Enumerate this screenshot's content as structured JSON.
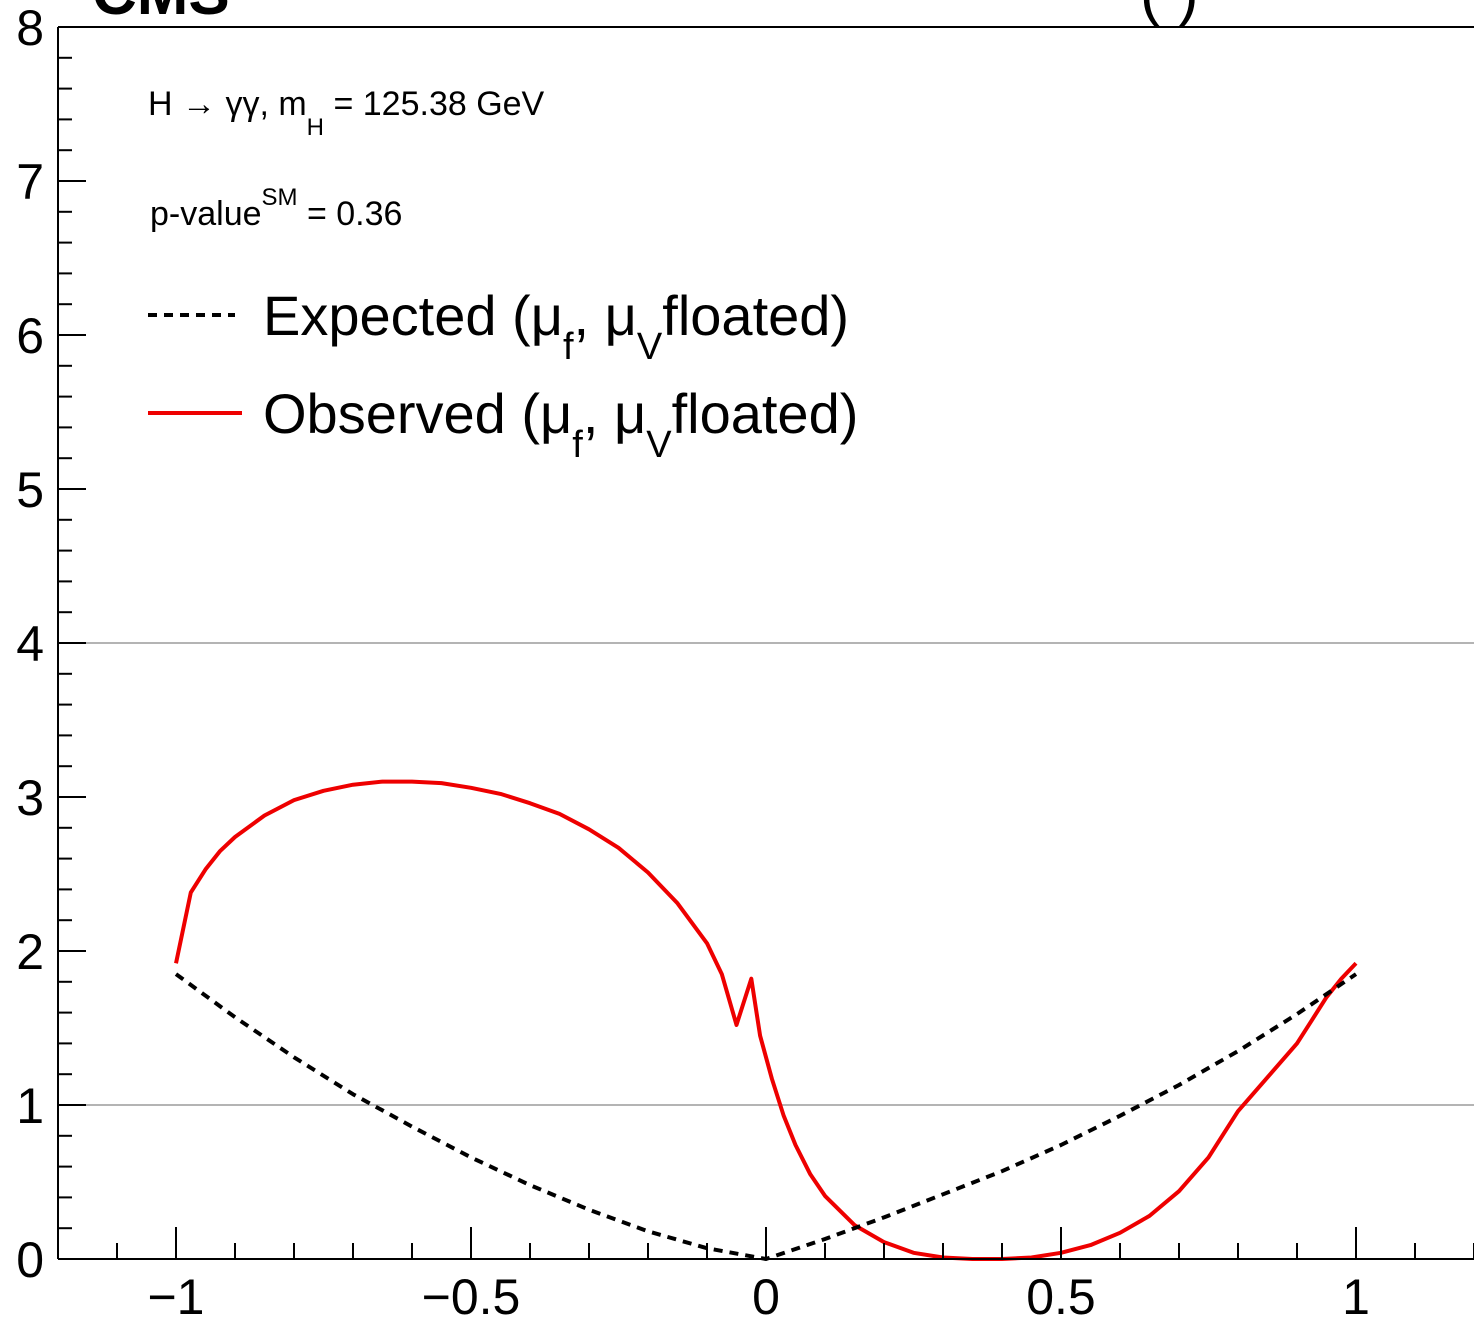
{
  "header": {
    "experiment": "CMS",
    "luminosity_visible": "(                )"
  },
  "annotations": {
    "process": {
      "prefix": "H → γγ, m",
      "sub": "H",
      "suffix": " = 125.38 GeV"
    },
    "pvalue": {
      "prefix": "p-value",
      "sup": "SM",
      "suffix": " = 0.36"
    }
  },
  "legend": {
    "expected": {
      "l1": "Expected (μ",
      "s1": "f",
      "l2": ", μ",
      "s2": "V",
      "l3": "floated)"
    },
    "observed": {
      "l1": "Observed (μ",
      "s1": "f",
      "l2": ", μ",
      "s2": "V",
      "l3": "floated)"
    }
  },
  "colors": {
    "observed": "#ee0000",
    "expected": "#000000",
    "gridline": "#b4b4b4"
  },
  "chart_data": {
    "type": "line",
    "xlim": [
      -1.2,
      1.2
    ],
    "ylim": [
      0,
      8
    ],
    "xticks": [
      -1,
      -0.5,
      0,
      0.5,
      1
    ],
    "xtick_labels": [
      "−1",
      "−0.5",
      "0",
      "0.5",
      "1"
    ],
    "yticks": [
      0,
      1,
      2,
      3,
      4,
      5,
      6,
      7,
      8
    ],
    "ytick_labels": [
      "0",
      "1",
      "2",
      "3",
      "4",
      "5",
      "6",
      "7",
      "8"
    ],
    "reference_lines_y": [
      1,
      4
    ],
    "series": [
      {
        "name": "Observed (μ_f, μ_V floated)",
        "style": "solid",
        "x": [
          -1.0,
          -0.975,
          -0.95,
          -0.925,
          -0.9,
          -0.85,
          -0.8,
          -0.75,
          -0.7,
          -0.65,
          -0.6,
          -0.55,
          -0.5,
          -0.45,
          -0.4,
          -0.35,
          -0.3,
          -0.25,
          -0.2,
          -0.15,
          -0.1,
          -0.075,
          -0.05,
          -0.025,
          -0.01,
          0.01,
          0.03,
          0.05,
          0.075,
          0.1,
          0.15,
          0.2,
          0.25,
          0.3,
          0.35,
          0.4,
          0.45,
          0.5,
          0.55,
          0.6,
          0.65,
          0.7,
          0.75,
          0.8,
          0.85,
          0.9,
          0.925,
          0.95,
          0.975,
          1.0
        ],
        "y": [
          1.92,
          2.38,
          2.53,
          2.65,
          2.74,
          2.88,
          2.98,
          3.04,
          3.08,
          3.1,
          3.1,
          3.09,
          3.06,
          3.02,
          2.96,
          2.89,
          2.79,
          2.67,
          2.51,
          2.31,
          2.05,
          1.85,
          1.52,
          1.82,
          1.45,
          1.17,
          0.93,
          0.74,
          0.55,
          0.41,
          0.22,
          0.11,
          0.04,
          0.01,
          0.0,
          0.0,
          0.01,
          0.04,
          0.09,
          0.17,
          0.28,
          0.44,
          0.66,
          0.96,
          1.18,
          1.4,
          1.55,
          1.7,
          1.82,
          1.92
        ]
      },
      {
        "name": "Expected (μ_f, μ_V floated)",
        "style": "dashed",
        "x": [
          -1.0,
          -0.9,
          -0.8,
          -0.7,
          -0.6,
          -0.5,
          -0.4,
          -0.3,
          -0.2,
          -0.1,
          0.0,
          0.1,
          0.2,
          0.3,
          0.4,
          0.5,
          0.6,
          0.7,
          0.8,
          0.9,
          1.0
        ],
        "y": [
          1.85,
          1.57,
          1.31,
          1.07,
          0.86,
          0.66,
          0.48,
          0.32,
          0.18,
          0.07,
          0.0,
          0.13,
          0.27,
          0.42,
          0.57,
          0.74,
          0.93,
          1.13,
          1.35,
          1.59,
          1.85
        ]
      }
    ]
  }
}
